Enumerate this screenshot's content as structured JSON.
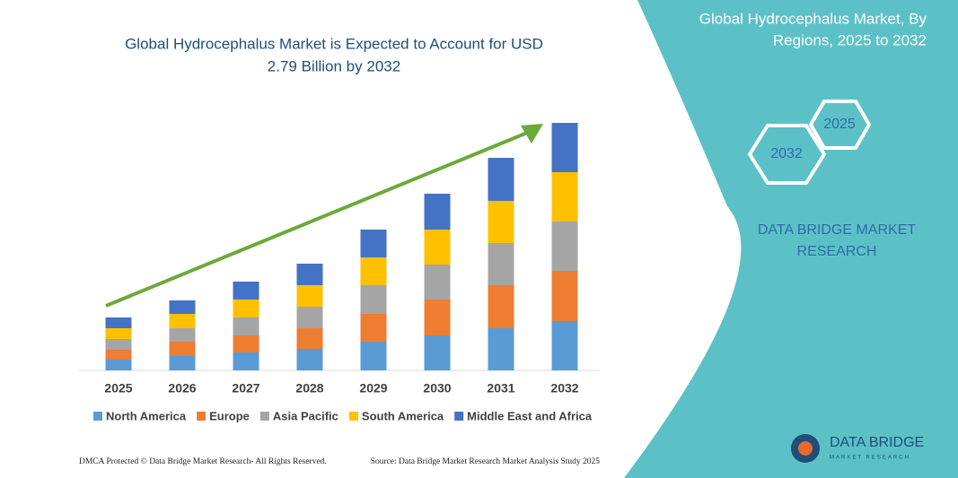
{
  "chart_data": {
    "type": "stacked_bar",
    "title_line1": "Global Hydrocephalus Market is Expected to Account for USD",
    "title_line2": "2.79 Billion by 2032",
    "categories": [
      "2025",
      "2026",
      "2027",
      "2028",
      "2029",
      "2030",
      "2031",
      "2032"
    ],
    "series": [
      {
        "name": "North America",
        "color": "#5b9bd5",
        "values": [
          12,
          16,
          20,
          24,
          32,
          39,
          47,
          55
        ]
      },
      {
        "name": "Europe",
        "color": "#ed7d31",
        "values": [
          11,
          16,
          19,
          23,
          31,
          40,
          48,
          56
        ]
      },
      {
        "name": "Asia Pacific",
        "color": "#a5a5a5",
        "values": [
          12,
          15,
          20,
          24,
          32,
          39,
          47,
          55
        ]
      },
      {
        "name": "South America",
        "color": "#ffc000",
        "values": [
          12,
          16,
          20,
          24,
          31,
          39,
          47,
          55
        ]
      },
      {
        "name": "Middle East and Africa",
        "color": "#4472c4",
        "values": [
          12,
          15,
          20,
          24,
          31,
          40,
          48,
          55
        ]
      }
    ],
    "ylim": [
      0,
      280
    ]
  },
  "panel": {
    "title_line1": "Global Hydrocephalus Market, By",
    "title_line2": "Regions, 2025 to 2032",
    "hex_left": "2032",
    "hex_right": "2025",
    "brand_line1": "DATA BRIDGE MARKET",
    "brand_line2": "RESEARCH"
  },
  "logo": {
    "name": "DATA BRIDGE",
    "tagline": "MARKET RESEARCH"
  },
  "footer": {
    "left": "DMCA Protected © Data Bridge Market Research- All Rights Reserved.",
    "right": "Source: Data Bridge Market Research Market Analysis Study 2025"
  }
}
